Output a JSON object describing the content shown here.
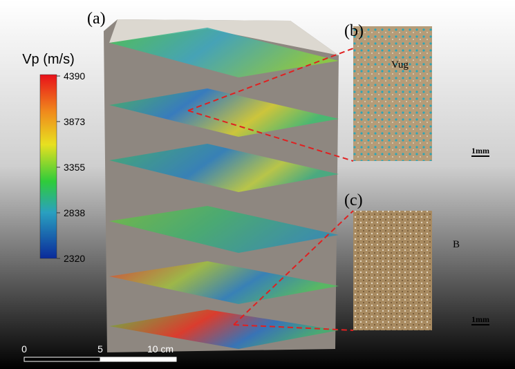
{
  "panels": {
    "a": "(a)",
    "b": "(b)",
    "c": "(c)"
  },
  "colorbar": {
    "title": "Vp (m/s)",
    "range": [
      2320,
      4390
    ],
    "ticks": [
      2320,
      2838,
      3355,
      3873,
      4390
    ]
  },
  "micrograph_b": {
    "annotation": "Vug",
    "scale": "1mm"
  },
  "micrograph_c": {
    "annotation": "B",
    "scale": "1mm"
  },
  "scale_bar": {
    "labels": [
      "0",
      "5",
      "10 cm"
    ]
  }
}
